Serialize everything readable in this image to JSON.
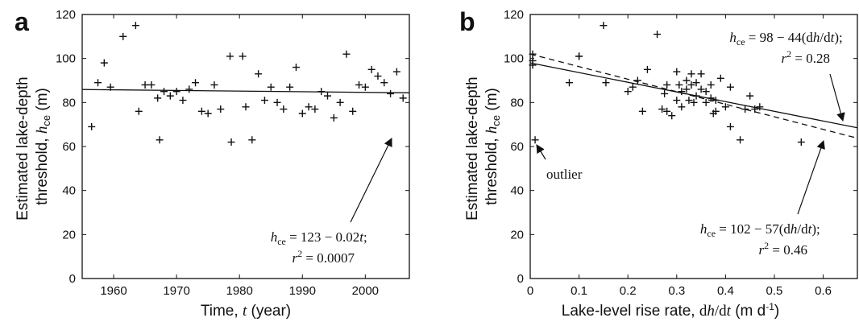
{
  "chart_data": [
    {
      "type": "scatter",
      "panel_label": "a",
      "xlabel": "Time, t (year)",
      "ylabel": "Estimated lake-depth threshold, h_ce (m)",
      "xlim": [
        1955,
        2007
      ],
      "ylim": [
        0,
        120
      ],
      "x_ticks": [
        1960,
        1970,
        1980,
        1990,
        2000
      ],
      "y_ticks": [
        0,
        20,
        40,
        60,
        80,
        100,
        120
      ],
      "points": [
        [
          1956.5,
          69
        ],
        [
          1957.5,
          89
        ],
        [
          1958.5,
          98
        ],
        [
          1959.5,
          87
        ],
        [
          1961.5,
          110
        ],
        [
          1963.5,
          115
        ],
        [
          1964.0,
          76
        ],
        [
          1965.0,
          88
        ],
        [
          1966.0,
          88
        ],
        [
          1967.0,
          82
        ],
        [
          1967.3,
          63
        ],
        [
          1968.0,
          85
        ],
        [
          1969.0,
          83
        ],
        [
          1970.0,
          85
        ],
        [
          1971.0,
          81
        ],
        [
          1972.0,
          86
        ],
        [
          1973.0,
          89
        ],
        [
          1974.0,
          76
        ],
        [
          1975.0,
          75
        ],
        [
          1976.0,
          88
        ],
        [
          1977.0,
          77
        ],
        [
          1978.5,
          101
        ],
        [
          1978.7,
          62
        ],
        [
          1980.5,
          101
        ],
        [
          1981.0,
          78
        ],
        [
          1982.0,
          63
        ],
        [
          1983.0,
          93
        ],
        [
          1984.0,
          81
        ],
        [
          1985.0,
          87
        ],
        [
          1986.0,
          80
        ],
        [
          1987.0,
          77
        ],
        [
          1988.0,
          87
        ],
        [
          1989.0,
          96
        ],
        [
          1990.0,
          75
        ],
        [
          1991.0,
          78
        ],
        [
          1992.0,
          77
        ],
        [
          1993.0,
          85
        ],
        [
          1994.0,
          83
        ],
        [
          1995.0,
          73
        ],
        [
          1996.0,
          80
        ],
        [
          1997.0,
          102
        ],
        [
          1998.0,
          76
        ],
        [
          1999.0,
          88
        ],
        [
          2000.0,
          87
        ],
        [
          2001.0,
          95
        ],
        [
          2002.0,
          92
        ],
        [
          2003.0,
          89
        ],
        [
          2004.0,
          84
        ],
        [
          2005.0,
          94
        ],
        [
          2006.0,
          82
        ]
      ],
      "fit_lines": [
        {
          "style": "solid",
          "x": [
            1955,
            2007
          ],
          "y": [
            85.9,
            84.4
          ]
        }
      ],
      "annotations": [
        {
          "lines": [
            "h_ce = 123 − 0.02t;",
            "r² = 0.0007"
          ]
        }
      ]
    },
    {
      "type": "scatter",
      "panel_label": "b",
      "xlabel": "Lake-level rise rate, dh/dt (m d⁻¹)",
      "ylabel": "Estimated lake-depth threshold, h_ce (m)",
      "xlim": [
        0,
        0.67
      ],
      "ylim": [
        0,
        120
      ],
      "x_ticks": [
        0,
        0.1,
        0.2,
        0.3,
        0.4,
        0.5,
        0.6
      ],
      "y_ticks": [
        0,
        20,
        40,
        60,
        80,
        100,
        120
      ],
      "points": [
        [
          0.005,
          102
        ],
        [
          0.005,
          99
        ],
        [
          0.005,
          97
        ],
        [
          0.01,
          63
        ],
        [
          0.08,
          89
        ],
        [
          0.1,
          101
        ],
        [
          0.1,
          101
        ],
        [
          0.15,
          115
        ],
        [
          0.155,
          89
        ],
        [
          0.2,
          85
        ],
        [
          0.21,
          87
        ],
        [
          0.22,
          90
        ],
        [
          0.23,
          76
        ],
        [
          0.24,
          95
        ],
        [
          0.26,
          111
        ],
        [
          0.27,
          77
        ],
        [
          0.275,
          84
        ],
        [
          0.28,
          76
        ],
        [
          0.28,
          88
        ],
        [
          0.29,
          74
        ],
        [
          0.3,
          81
        ],
        [
          0.3,
          94
        ],
        [
          0.305,
          88
        ],
        [
          0.31,
          85
        ],
        [
          0.31,
          78
        ],
        [
          0.32,
          90
        ],
        [
          0.32,
          86
        ],
        [
          0.325,
          81
        ],
        [
          0.33,
          93
        ],
        [
          0.33,
          88
        ],
        [
          0.335,
          80
        ],
        [
          0.34,
          83
        ],
        [
          0.34,
          89
        ],
        [
          0.35,
          86
        ],
        [
          0.35,
          93
        ],
        [
          0.36,
          85
        ],
        [
          0.36,
          80
        ],
        [
          0.37,
          88
        ],
        [
          0.37,
          82
        ],
        [
          0.375,
          75
        ],
        [
          0.38,
          81
        ],
        [
          0.38,
          76
        ],
        [
          0.39,
          91
        ],
        [
          0.4,
          78
        ],
        [
          0.41,
          87
        ],
        [
          0.41,
          69
        ],
        [
          0.43,
          63
        ],
        [
          0.44,
          77
        ],
        [
          0.45,
          83
        ],
        [
          0.46,
          77
        ],
        [
          0.47,
          78
        ],
        [
          0.555,
          62
        ]
      ],
      "fit_lines": [
        {
          "style": "solid",
          "x": [
            0,
            0.67
          ],
          "y": [
            98,
            68.5
          ]
        },
        {
          "style": "dashed",
          "x": [
            0,
            0.67
          ],
          "y": [
            102,
            63.8
          ]
        }
      ],
      "annotations": [
        {
          "lines": [
            "h_ce = 98 − 44(dh/dt);",
            "r² = 0.28"
          ]
        },
        {
          "lines": [
            "h_ce = 102 − 57(dh/dt);",
            "r² = 0.46"
          ]
        },
        {
          "lines": [
            "outlier"
          ]
        }
      ]
    }
  ]
}
